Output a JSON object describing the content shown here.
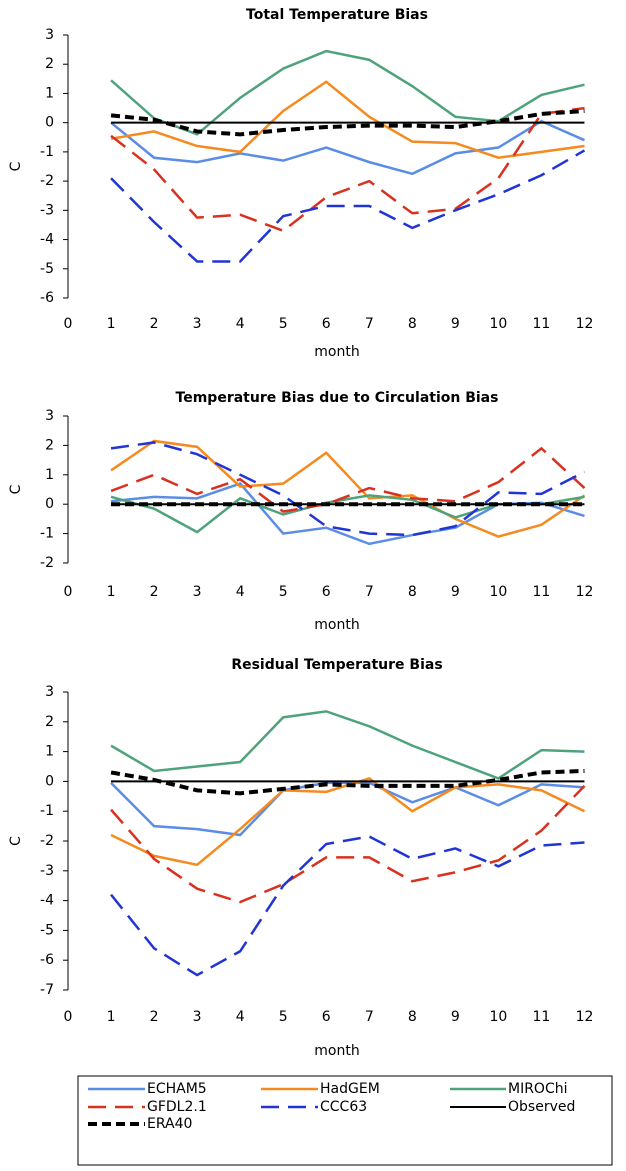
{
  "chart_data": [
    {
      "type": "line",
      "title": "Total Temperature Bias",
      "xlabel": "month",
      "ylabel": "C",
      "x": [
        1,
        2,
        3,
        4,
        5,
        6,
        7,
        8,
        9,
        10,
        11,
        12
      ],
      "xlim": [
        0,
        12.5
      ],
      "xticks": [
        0,
        1,
        2,
        3,
        4,
        5,
        6,
        7,
        8,
        9,
        10,
        11,
        12
      ],
      "ylim": [
        -6,
        3
      ],
      "yticks": [
        -6,
        -5,
        -4,
        -3,
        -2,
        -1,
        0,
        1,
        2,
        3
      ],
      "series": [
        {
          "values": [
            0,
            -1.2,
            -1.35,
            -1.05,
            -1.3,
            -0.85,
            -1.35,
            -1.75,
            -1.05,
            -0.85,
            0.05,
            -0.6
          ]
        },
        {
          "values": [
            -0.55,
            -0.3,
            -0.8,
            -1.0,
            0.4,
            1.4,
            0.2,
            -0.65,
            -0.7,
            -1.2,
            -1.0,
            -0.8
          ]
        },
        {
          "values": [
            1.45,
            0.15,
            -0.4,
            0.85,
            1.85,
            2.45,
            2.15,
            1.25,
            0.2,
            0.05,
            0.95,
            1.3
          ]
        },
        {
          "values": [
            -0.45,
            -1.6,
            -3.25,
            -3.15,
            -3.7,
            -2.55,
            -2.0,
            -3.1,
            -2.95,
            -1.9,
            0.3,
            0.5
          ]
        },
        {
          "values": [
            -1.9,
            -3.4,
            -4.75,
            -4.75,
            -3.2,
            -2.85,
            -2.85,
            -3.6,
            -3.0,
            -2.45,
            -1.8,
            -0.95
          ]
        },
        {
          "values": [
            0,
            0,
            0,
            0,
            0,
            0,
            0,
            0,
            0,
            0,
            0,
            0
          ]
        },
        {
          "values": [
            0.25,
            0.1,
            -0.3,
            -0.4,
            -0.25,
            -0.15,
            -0.1,
            -0.1,
            -0.15,
            0.05,
            0.3,
            0.4
          ]
        }
      ]
    },
    {
      "type": "line",
      "title": "Temperature Bias due to Circulation Bias",
      "xlabel": "month",
      "ylabel": "C",
      "x": [
        1,
        2,
        3,
        4,
        5,
        6,
        7,
        8,
        9,
        10,
        11,
        12
      ],
      "xlim": [
        0,
        12.5
      ],
      "xticks": [
        0,
        1,
        2,
        3,
        4,
        5,
        6,
        7,
        8,
        9,
        10,
        11,
        12
      ],
      "ylim": [
        -2,
        3
      ],
      "yticks": [
        -2,
        -1,
        0,
        1,
        2,
        3
      ],
      "series": [
        {
          "values": [
            0.1,
            0.25,
            0.2,
            0.7,
            -1.0,
            -0.8,
            -1.35,
            -1.05,
            -0.8,
            0,
            0.05,
            -0.4
          ]
        },
        {
          "values": [
            1.15,
            2.15,
            1.95,
            0.6,
            0.7,
            1.75,
            0.2,
            0.3,
            -0.5,
            -1.1,
            -0.7,
            0.3
          ]
        },
        {
          "values": [
            0.25,
            -0.15,
            -0.95,
            0.2,
            -0.35,
            0.05,
            0.3,
            0.15,
            -0.45,
            0,
            0,
            0.25
          ]
        },
        {
          "values": [
            0.45,
            1.0,
            0.35,
            0.85,
            -0.25,
            0,
            0.55,
            0.2,
            0.1,
            0.75,
            1.9,
            0.55
          ]
        },
        {
          "values": [
            1.9,
            2.1,
            1.7,
            1.0,
            0.3,
            -0.75,
            -1.0,
            -1.05,
            -0.75,
            0.4,
            0.35,
            1.1
          ]
        },
        {
          "values": [
            0,
            0,
            0,
            0,
            0,
            0,
            0,
            0,
            0,
            0,
            0,
            0
          ]
        },
        {
          "values": [
            0,
            0,
            0,
            0,
            0,
            0,
            0,
            0,
            0,
            0,
            0,
            0
          ]
        }
      ]
    },
    {
      "type": "line",
      "title": "Residual Temperature Bias",
      "xlabel": "month",
      "ylabel": "C",
      "x": [
        1,
        2,
        3,
        4,
        5,
        6,
        7,
        8,
        9,
        10,
        11,
        12
      ],
      "xlim": [
        0,
        12.5
      ],
      "xticks": [
        0,
        1,
        2,
        3,
        4,
        5,
        6,
        7,
        8,
        9,
        10,
        11,
        12
      ],
      "ylim": [
        -7,
        3
      ],
      "yticks": [
        -7,
        -6,
        -5,
        -4,
        -3,
        -2,
        -1,
        0,
        1,
        2,
        3
      ],
      "series": [
        {
          "values": [
            -0.05,
            -1.5,
            -1.6,
            -1.8,
            -0.3,
            -0.05,
            -0.05,
            -0.7,
            -0.2,
            -0.8,
            -0.1,
            -0.2
          ]
        },
        {
          "values": [
            -1.8,
            -2.5,
            -2.8,
            -1.6,
            -0.3,
            -0.35,
            0.1,
            -1.0,
            -0.2,
            -0.1,
            -0.3,
            -1.0
          ]
        },
        {
          "values": [
            1.2,
            0.35,
            0.5,
            0.65,
            2.15,
            2.35,
            1.85,
            1.2,
            0.65,
            0.1,
            1.05,
            1.0
          ]
        },
        {
          "values": [
            -0.95,
            -2.6,
            -3.6,
            -4.05,
            -3.45,
            -2.55,
            -2.55,
            -3.35,
            -3.05,
            -2.65,
            -1.65,
            -0.15
          ]
        },
        {
          "values": [
            -3.8,
            -5.6,
            -6.5,
            -5.7,
            -3.5,
            -2.1,
            -1.85,
            -2.6,
            -2.25,
            -2.85,
            -2.15,
            -2.05
          ]
        },
        {
          "values": [
            0,
            0,
            0,
            0,
            0,
            0,
            0,
            0,
            0,
            0,
            0,
            0
          ]
        },
        {
          "values": [
            0.3,
            0.05,
            -0.3,
            -0.4,
            -0.25,
            -0.1,
            -0.15,
            -0.15,
            -0.15,
            0.05,
            0.3,
            0.35
          ]
        }
      ]
    }
  ],
  "legend": [
    {
      "name": "ECHAM5",
      "color": "#5b8de6",
      "dash": "solid"
    },
    {
      "name": "HadGEM",
      "color": "#f58a1f",
      "dash": "solid"
    },
    {
      "name": "MIROChi",
      "color": "#4fa37b",
      "dash": "solid"
    },
    {
      "name": "GFDL2.1",
      "color": "#d9311f",
      "dash": "long"
    },
    {
      "name": "CCC63",
      "color": "#2135d4",
      "dash": "long"
    },
    {
      "name": "Observed",
      "color": "#000000",
      "dash": "solid"
    },
    {
      "name": "ERA40",
      "color": "#000000",
      "dash": "short-thick"
    }
  ]
}
